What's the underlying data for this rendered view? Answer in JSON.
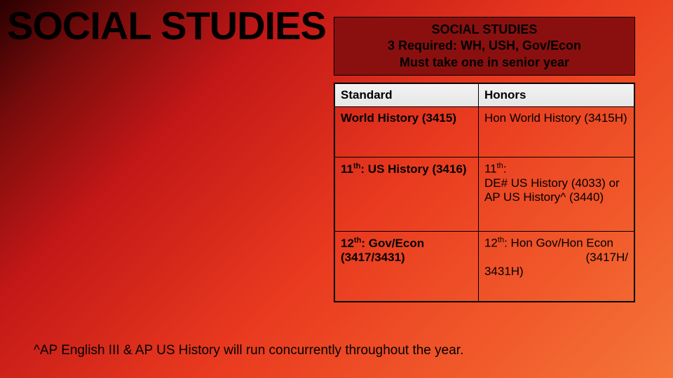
{
  "colors": {
    "bg_gradient_stops": [
      "#2a0000",
      "#7a0c0c",
      "#c21717",
      "#e93a1f",
      "#f15a2b",
      "#f4753a"
    ],
    "box_bg": "#8a1010",
    "header_bg_top": "#f2f2f2",
    "header_bg_bottom": "#e6e6e6",
    "border": "#000000",
    "text": "#000000"
  },
  "title": "SOCIAL STUDIES",
  "box": {
    "line1": "SOCIAL STUDIES",
    "line2": "3 Required: WH, USH, Gov/Econ",
    "line3": "Must take one in senior year"
  },
  "table": {
    "headers": {
      "c0": "Standard",
      "c1": "Honors"
    },
    "rows": [
      {
        "standard_html": "<span class='b'>World History (3415)</span>",
        "honors_html": "Hon World History (3415H)"
      },
      {
        "standard_html": "<span class='b'>11<sup>th</sup>: US History (3416)</span>",
        "honors_html": "11<sup>th</sup>:<br>DE# US History (4033) or<br>AP US History^ (3440)"
      },
      {
        "standard_html": "<span class='b'>12<sup>th</sup>: Gov/Econ (3417/3431)</span>",
        "honors_html": "12<sup>th</sup>: Hon Gov/Hon Econ<div style='text-align:right'>(3417H/</div>3431H)"
      }
    ]
  },
  "footnote": "^AP English III & AP US History will run concurrently throughout the year."
}
